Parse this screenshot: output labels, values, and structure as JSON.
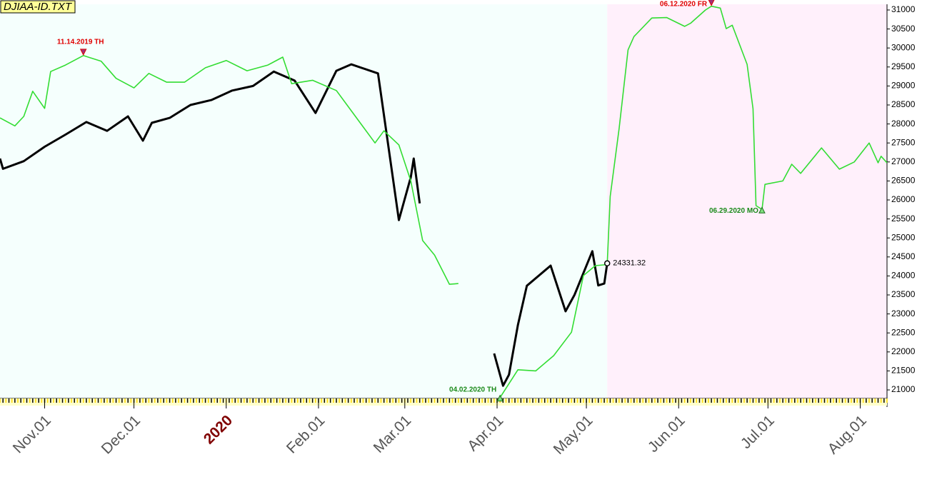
{
  "chart_data": {
    "type": "line",
    "title": "DJIAA-ID.TXT",
    "xlim": [
      "2019-10-17",
      "2020-08-10"
    ],
    "ylim": [
      20775,
      31150
    ],
    "xticks": [
      {
        "value": "2019-11-01",
        "label": "Nov.01"
      },
      {
        "value": "2019-12-01",
        "label": "Dec.01"
      },
      {
        "value": "2020-01-01",
        "label": "2020"
      },
      {
        "value": "2020-02-01",
        "label": "Feb.01"
      },
      {
        "value": "2020-03-01",
        "label": "Mar.01"
      },
      {
        "value": "2020-04-01",
        "label": "Apr.01"
      },
      {
        "value": "2020-05-01",
        "label": "May.01"
      },
      {
        "value": "2020-06-01",
        "label": "Jun.01"
      },
      {
        "value": "2020-07-01",
        "label": "Jul.01"
      },
      {
        "value": "2020-08-01",
        "label": "Aug.01"
      }
    ],
    "year_tick_color": "#800000",
    "yticks": [
      21000,
      21500,
      22000,
      22500,
      23000,
      23500,
      24000,
      24500,
      25000,
      25500,
      26000,
      26500,
      27000,
      27500,
      28000,
      28500,
      29000,
      29500,
      30000,
      30500,
      31000
    ],
    "shading": [
      {
        "from": "2019-10-17",
        "to": "2020-05-08",
        "color": "#f5fffd"
      },
      {
        "from": "2020-05-08",
        "to": "2020-08-10",
        "color": "#fff0fb"
      }
    ],
    "series": [
      {
        "color": "#000000",
        "x": [
          "2019-10-17",
          "2019-10-18",
          "2019-10-25",
          "2019-11-01",
          "2019-11-08",
          "2019-11-15",
          "2019-11-22",
          "2019-11-29",
          "2019-12-04",
          "2019-12-07",
          "2019-12-13",
          "2019-12-20",
          "2019-12-27",
          "2020-01-03",
          "2020-01-10",
          "2020-01-17",
          "2020-01-24",
          "2020-01-31",
          "2020-02-07",
          "2020-02-12",
          "2020-02-21",
          "2020-02-28",
          "2020-03-03",
          "2020-03-04",
          "2020-03-06",
          "2020-03-07",
          "2020-03-31",
          "2020-04-03",
          "2020-04-05",
          "2020-04-08",
          "2020-04-11",
          "2020-04-19",
          "2020-04-24",
          "2020-04-27",
          "2020-05-03",
          "2020-05-05",
          "2020-05-07",
          "2020-05-08"
        ],
        "values": [
          27090,
          26820,
          27020,
          27400,
          27720,
          28050,
          27820,
          28200,
          27560,
          28030,
          28160,
          28500,
          28630,
          28880,
          29000,
          29380,
          29140,
          28290,
          29400,
          29570,
          29330,
          25470,
          26600,
          27090,
          25910,
          null,
          21960,
          21110,
          21400,
          22710,
          23740,
          24270,
          23070,
          23500,
          24650,
          23750,
          23800,
          24331.32
        ]
      },
      {
        "color": "#33dd33",
        "x": [
          "2019-10-17",
          "2019-10-22",
          "2019-10-25",
          "2019-10-28",
          "2019-11-01",
          "2019-11-03",
          "2019-11-08",
          "2019-11-14",
          "2019-11-20",
          "2019-11-25",
          "2019-12-01",
          "2019-12-06",
          "2019-12-12",
          "2019-12-18",
          "2019-12-25",
          "2020-01-01",
          "2020-01-08",
          "2020-01-15",
          "2020-01-20",
          "2020-01-23",
          "2020-01-30",
          "2020-02-07",
          "2020-02-12",
          "2020-02-20",
          "2020-02-23",
          "2020-02-28",
          "2020-03-03",
          "2020-03-07",
          "2020-03-11",
          "2020-03-16",
          "2020-03-19",
          "2020-03-20",
          "2020-04-02",
          "2020-04-08",
          "2020-04-14",
          "2020-04-20",
          "2020-04-26",
          "2020-04-30",
          "2020-05-04",
          "2020-05-08",
          "2020-05-09",
          "2020-05-12",
          "2020-05-15",
          "2020-05-17",
          "2020-05-23",
          "2020-05-28",
          "2020-06-03",
          "2020-06-05",
          "2020-06-10",
          "2020-06-12",
          "2020-06-15",
          "2020-06-17",
          "2020-06-19",
          "2020-06-24",
          "2020-06-26",
          "2020-06-27",
          "2020-06-29",
          "2020-06-30",
          "2020-07-06",
          "2020-07-09",
          "2020-07-12",
          "2020-07-19",
          "2020-07-25",
          "2020-07-30",
          "2020-08-04",
          "2020-08-07",
          "2020-08-08",
          "2020-08-10"
        ],
        "values": [
          28160,
          27950,
          28200,
          28860,
          28410,
          29380,
          29550,
          29800,
          29650,
          29200,
          28950,
          29330,
          29100,
          29100,
          29480,
          29670,
          29400,
          29550,
          29760,
          29060,
          29150,
          28880,
          28350,
          27500,
          27820,
          27450,
          26500,
          24930,
          24550,
          23780,
          23800,
          null,
          20800,
          21530,
          21500,
          21900,
          22520,
          24010,
          24270,
          24300,
          26090,
          27880,
          29950,
          30300,
          30790,
          30800,
          30570,
          30650,
          31000,
          31100,
          31050,
          30510,
          30600,
          29570,
          28400,
          25850,
          25750,
          26410,
          26500,
          26940,
          26700,
          27370,
          26810,
          27000,
          27500,
          26980,
          27150,
          26980
        ]
      }
    ],
    "annotations": [
      {
        "text": "11.14.2019 TH",
        "x": "2019-11-14",
        "y": 29800,
        "color": "#e00000",
        "marker": "down"
      },
      {
        "text": "06.12.2020 FR",
        "x": "2020-06-12",
        "y": 31100,
        "color": "#e00000",
        "marker": "down"
      },
      {
        "text": "04.02.2020 TH",
        "x": "2020-04-02",
        "y": 20800,
        "color": "#1a8a1a",
        "marker": "up"
      },
      {
        "text": "06.29.2020 MO",
        "x": "2020-06-29",
        "y": 25750,
        "color": "#1a8a1a",
        "marker": "up"
      }
    ]
  }
}
